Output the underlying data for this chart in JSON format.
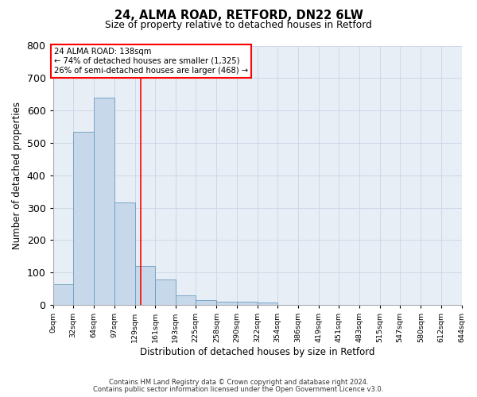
{
  "title_line1": "24, ALMA ROAD, RETFORD, DN22 6LW",
  "title_line2": "Size of property relative to detached houses in Retford",
  "xlabel": "Distribution of detached houses by size in Retford",
  "ylabel": "Number of detached properties",
  "bin_edges": [
    0,
    32,
    64,
    97,
    129,
    161,
    193,
    225,
    258,
    290,
    322,
    354,
    386,
    419,
    451,
    483,
    515,
    547,
    580,
    612,
    644
  ],
  "bar_heights": [
    65,
    535,
    640,
    315,
    120,
    78,
    30,
    15,
    10,
    10,
    8,
    0,
    0,
    0,
    0,
    0,
    0,
    0,
    0,
    0
  ],
  "bar_color": "#c8d8eb",
  "bar_edge_color": "#6a9cbc",
  "grid_color": "#ced8e8",
  "bg_color": "#e8eef6",
  "red_line_x": 138,
  "ylim": [
    0,
    800
  ],
  "xlim": [
    0,
    644
  ],
  "yticks": [
    0,
    100,
    200,
    300,
    400,
    500,
    600,
    700,
    800
  ],
  "annotation_text": "24 ALMA ROAD: 138sqm\n← 74% of detached houses are smaller (1,325)\n26% of semi-detached houses are larger (468) →",
  "footnote1": "Contains HM Land Registry data © Crown copyright and database right 2024.",
  "footnote2": "Contains public sector information licensed under the Open Government Licence v3.0."
}
